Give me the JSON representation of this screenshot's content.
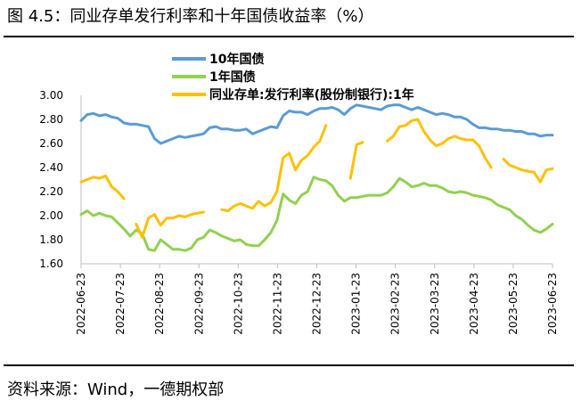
{
  "title": "图 4.5：同业存单发行利率和十年国债收益率（%）",
  "source": "资料来源：Wind，一德期权部",
  "chart_data": {
    "type": "line",
    "title": "",
    "ylim": [
      1.6,
      3.0
    ],
    "y_ticks": [
      "3.00",
      "2.80",
      "2.60",
      "2.40",
      "2.20",
      "2.00",
      "1.80",
      "1.60"
    ],
    "x_ticks": [
      "2022-06-23",
      "2022-07-23",
      "2022-08-23",
      "2022-09-23",
      "2022-10-23",
      "2022-11-23",
      "2022-12-23",
      "2023-01-23",
      "2023-02-23",
      "2023-03-23",
      "2023-04-23",
      "2023-05-23",
      "2023-06-23"
    ],
    "legend_position": "top",
    "series": [
      {
        "name": "10年国债",
        "color": "#5b9bd5",
        "values": [
          2.79,
          2.84,
          2.85,
          2.83,
          2.84,
          2.82,
          2.81,
          2.77,
          2.76,
          2.76,
          2.75,
          2.74,
          2.64,
          2.6,
          2.62,
          2.64,
          2.66,
          2.65,
          2.66,
          2.67,
          2.68,
          2.73,
          2.74,
          2.72,
          2.72,
          2.71,
          2.71,
          2.72,
          2.68,
          2.7,
          2.72,
          2.74,
          2.73,
          2.83,
          2.87,
          2.86,
          2.86,
          2.84,
          2.87,
          2.89,
          2.89,
          2.9,
          2.88,
          2.84,
          2.89,
          2.92,
          2.91,
          2.9,
          2.89,
          2.88,
          2.91,
          2.92,
          2.92,
          2.9,
          2.88,
          2.9,
          2.88,
          2.86,
          2.84,
          2.85,
          2.84,
          2.82,
          2.82,
          2.8,
          2.76,
          2.73,
          2.73,
          2.72,
          2.72,
          2.71,
          2.71,
          2.7,
          2.7,
          2.68,
          2.68,
          2.66,
          2.67,
          2.67
        ]
      },
      {
        "name": "1年国债",
        "color": "#92d050",
        "values": [
          2.01,
          2.04,
          2.0,
          2.02,
          2.0,
          1.99,
          1.94,
          1.89,
          1.83,
          1.88,
          1.85,
          1.72,
          1.71,
          1.8,
          1.76,
          1.72,
          1.72,
          1.71,
          1.73,
          1.8,
          1.82,
          1.88,
          1.86,
          1.83,
          1.81,
          1.79,
          1.8,
          1.76,
          1.75,
          1.75,
          1.8,
          1.86,
          1.96,
          2.18,
          2.13,
          2.1,
          2.17,
          2.2,
          2.32,
          2.3,
          2.29,
          2.25,
          2.17,
          2.12,
          2.15,
          2.15,
          2.16,
          2.17,
          2.17,
          2.17,
          2.19,
          2.24,
          2.31,
          2.28,
          2.24,
          2.25,
          2.27,
          2.25,
          2.25,
          2.23,
          2.2,
          2.19,
          2.2,
          2.19,
          2.17,
          2.16,
          2.15,
          2.13,
          2.09,
          2.07,
          2.05,
          2.0,
          1.97,
          1.92,
          1.88,
          1.86,
          1.89,
          1.93
        ]
      },
      {
        "name": "同业存单:发行利率(股份制银行):1年",
        "color": "#ffc000",
        "values": [
          2.28,
          2.3,
          2.32,
          2.31,
          2.33,
          2.24,
          2.2,
          2.14,
          null,
          1.93,
          1.82,
          1.98,
          2.01,
          1.92,
          1.98,
          1.98,
          2.0,
          1.99,
          2.01,
          2.02,
          2.03,
          null,
          null,
          2.05,
          2.04,
          2.08,
          2.1,
          2.08,
          2.06,
          2.12,
          2.08,
          2.11,
          2.2,
          2.48,
          2.52,
          2.38,
          2.46,
          2.5,
          2.57,
          2.62,
          2.75,
          null,
          2.56,
          null,
          2.31,
          2.59,
          2.61,
          null,
          2.58,
          null,
          2.62,
          2.66,
          2.74,
          2.75,
          2.79,
          2.8,
          2.7,
          2.63,
          2.58,
          2.6,
          2.64,
          2.66,
          2.64,
          2.63,
          2.63,
          2.58,
          2.48,
          2.4,
          null,
          2.47,
          2.42,
          2.4,
          2.38,
          2.37,
          2.36,
          2.28,
          2.38,
          2.39
        ]
      }
    ]
  }
}
